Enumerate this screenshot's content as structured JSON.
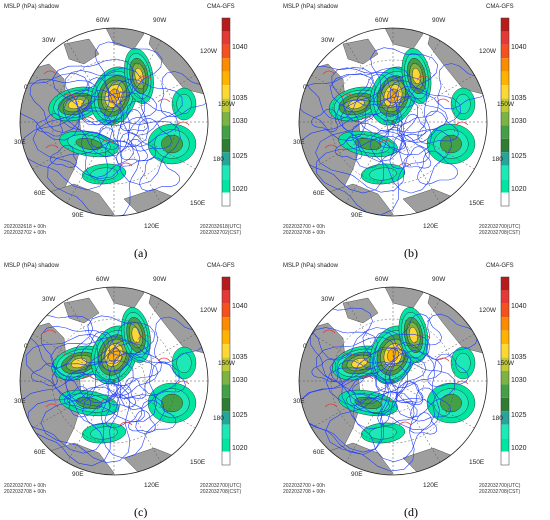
{
  "figure_labels": [
    "(a)",
    "(b)",
    "(c)",
    "(d)"
  ],
  "colorbar": {
    "ticks": [
      "1040",
      "1035",
      "1030",
      "1025",
      "1020"
    ],
    "colors": [
      "#b71c1c",
      "#e53935",
      "#f4511e",
      "#fb8c00",
      "#ffb300",
      "#fdd835",
      "#c0ca33",
      "#7cb342",
      "#43a047",
      "#2e7d32",
      "#26a69a",
      "#1de9b6",
      "#00e5a0",
      "#ffffff"
    ]
  },
  "longitude_labels": [
    "60W",
    "90W",
    "30W",
    "120W",
    "0",
    "150W",
    "30E",
    "180",
    "60E",
    "150E",
    "90E",
    "120E"
  ],
  "panels": [
    {
      "title": "MSLP (hPa) shadow",
      "model": "CMA-GFS",
      "foot_left_1": "2022032618 + 00h",
      "foot_left_2": "2022032702 + 00h",
      "foot_right_1": "2022032618(UTC)",
      "foot_right_2": "2022032702(CST)"
    },
    {
      "title": "MSLP (hPa) shadow",
      "model": "CMA-GFS",
      "foot_left_1": "2022032700 + 00h",
      "foot_left_2": "2022032708 + 00h",
      "foot_right_1": "2022032700(UTC)",
      "foot_right_2": "2022032708(CST)"
    },
    {
      "title": "MSLP (hPa) shadow",
      "model": "CMA-GFS",
      "foot_left_1": "2022032700 + 00h",
      "foot_left_2": "2022032708 + 00h",
      "foot_right_1": "2022032700(UTC)",
      "foot_right_2": "2022032708(CST)"
    },
    {
      "title": "MSLP (hPa) shadow",
      "model": "CMA-GFS",
      "foot_left_1": "2022032700 + 00h",
      "foot_left_2": "2022032708 + 00h",
      "foot_right_1": "2022032700(UTC)",
      "foot_right_2": "2022032708(CST)"
    }
  ]
}
